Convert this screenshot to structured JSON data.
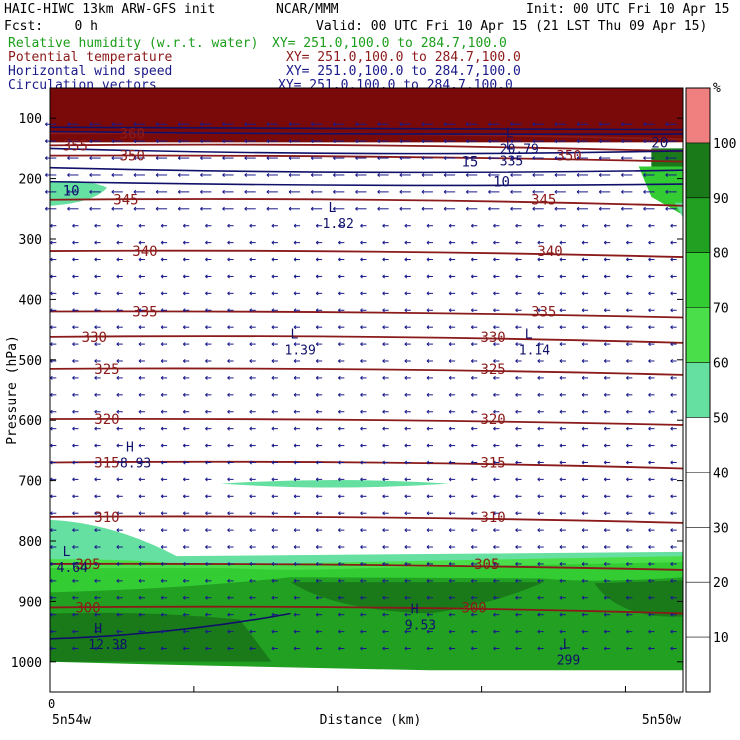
{
  "header": {
    "model": "HAIC-HIWC 13km ARW-GFS init",
    "center": "NCAR/MMM",
    "init": "Init: 00 UTC Fri 10 Apr 15",
    "fcst": "Fcst:    0 h",
    "valid": "Valid: 00 UTC Fri 10 Apr 15 (21 LST Thu 09 Apr 15)",
    "fields": [
      {
        "name": "Relative humidity (w.r.t. water)",
        "xy": "XY= 251.0,100.0 to 284.7,100.0",
        "color": "#1b9e1b"
      },
      {
        "name": "Potential temperature",
        "xy": "XY= 251.0,100.0 to 284.7,100.0",
        "color": "#8b1a1a"
      },
      {
        "name": "Horizontal wind speed",
        "xy": "XY= 251.0,100.0 to 284.7,100.0",
        "color": "#1a1a8b"
      },
      {
        "name": "Circulation vectors",
        "xy": "XY= 251.0,100.0 to 284.7,100.0",
        "color": "#1a1a8b"
      }
    ]
  },
  "chart_data": {
    "type": "heatmap",
    "title": "",
    "xlabel": "Distance (km)",
    "ylabel": "Pressure (hPa)",
    "x_left_label": "5n54w",
    "x_right_label": "5n50w",
    "x_origin_label": "0",
    "y_ticks": [
      100,
      200,
      300,
      400,
      500,
      600,
      700,
      800,
      900,
      1000
    ],
    "ylim": [
      1050,
      50
    ],
    "colorbar": {
      "unit": "%",
      "labels": [
        10,
        20,
        30,
        40,
        50,
        60,
        70,
        80,
        90,
        100
      ],
      "bands": [
        {
          "from": 100,
          "to": 110,
          "color": "#f08080"
        },
        {
          "from": 90,
          "to": 100,
          "color": "#1a7a1a"
        },
        {
          "from": 80,
          "to": 90,
          "color": "#22a022"
        },
        {
          "from": 70,
          "to": 80,
          "color": "#33cc33"
        },
        {
          "from": 60,
          "to": 70,
          "color": "#4ade4a"
        },
        {
          "from": 50,
          "to": 60,
          "color": "#66e0a0"
        }
      ]
    },
    "theta_contours": [
      {
        "label": "345",
        "p": 235
      },
      {
        "label": "340",
        "p": 320
      },
      {
        "label": "335",
        "p": 420
      },
      {
        "label": "330",
        "p": 462
      },
      {
        "label": "325",
        "p": 515
      },
      {
        "label": "320",
        "p": 598
      },
      {
        "label": "315",
        "p": 670
      },
      {
        "label": "310",
        "p": 760
      },
      {
        "label": "305",
        "p": 838
      },
      {
        "label": "300",
        "p": 910
      },
      {
        "label": "360",
        "p": 125
      },
      {
        "label": "350",
        "p": 162
      },
      {
        "label": "355",
        "p": 145
      }
    ],
    "wind_labels": [
      "10",
      "15",
      "20",
      "10"
    ],
    "extrema": [
      {
        "kind": "L",
        "value": "1.82",
        "x": 0.44,
        "p": 265
      },
      {
        "kind": "L",
        "value": "1.39",
        "x": 0.38,
        "p": 475
      },
      {
        "kind": "L",
        "value": "1.14",
        "x": 0.75,
        "p": 475
      },
      {
        "kind": "H",
        "value": "8.93",
        "x": 0.12,
        "p": 662
      },
      {
        "kind": "L",
        "value": "4.64",
        "x": 0.02,
        "p": 835
      },
      {
        "kind": "H",
        "value": "12.38",
        "x": 0.07,
        "p": 962
      },
      {
        "kind": "H",
        "value": "9.53",
        "x": 0.57,
        "p": 930
      },
      {
        "kind": "L",
        "value": "299",
        "x": 0.81,
        "p": 988
      },
      {
        "kind": "L",
        "value": "20.79",
        "x": 0.72,
        "p": 142
      },
      {
        "kind": "L",
        "value": "335",
        "x": 0.72,
        "p": 162
      }
    ],
    "grid": false
  }
}
